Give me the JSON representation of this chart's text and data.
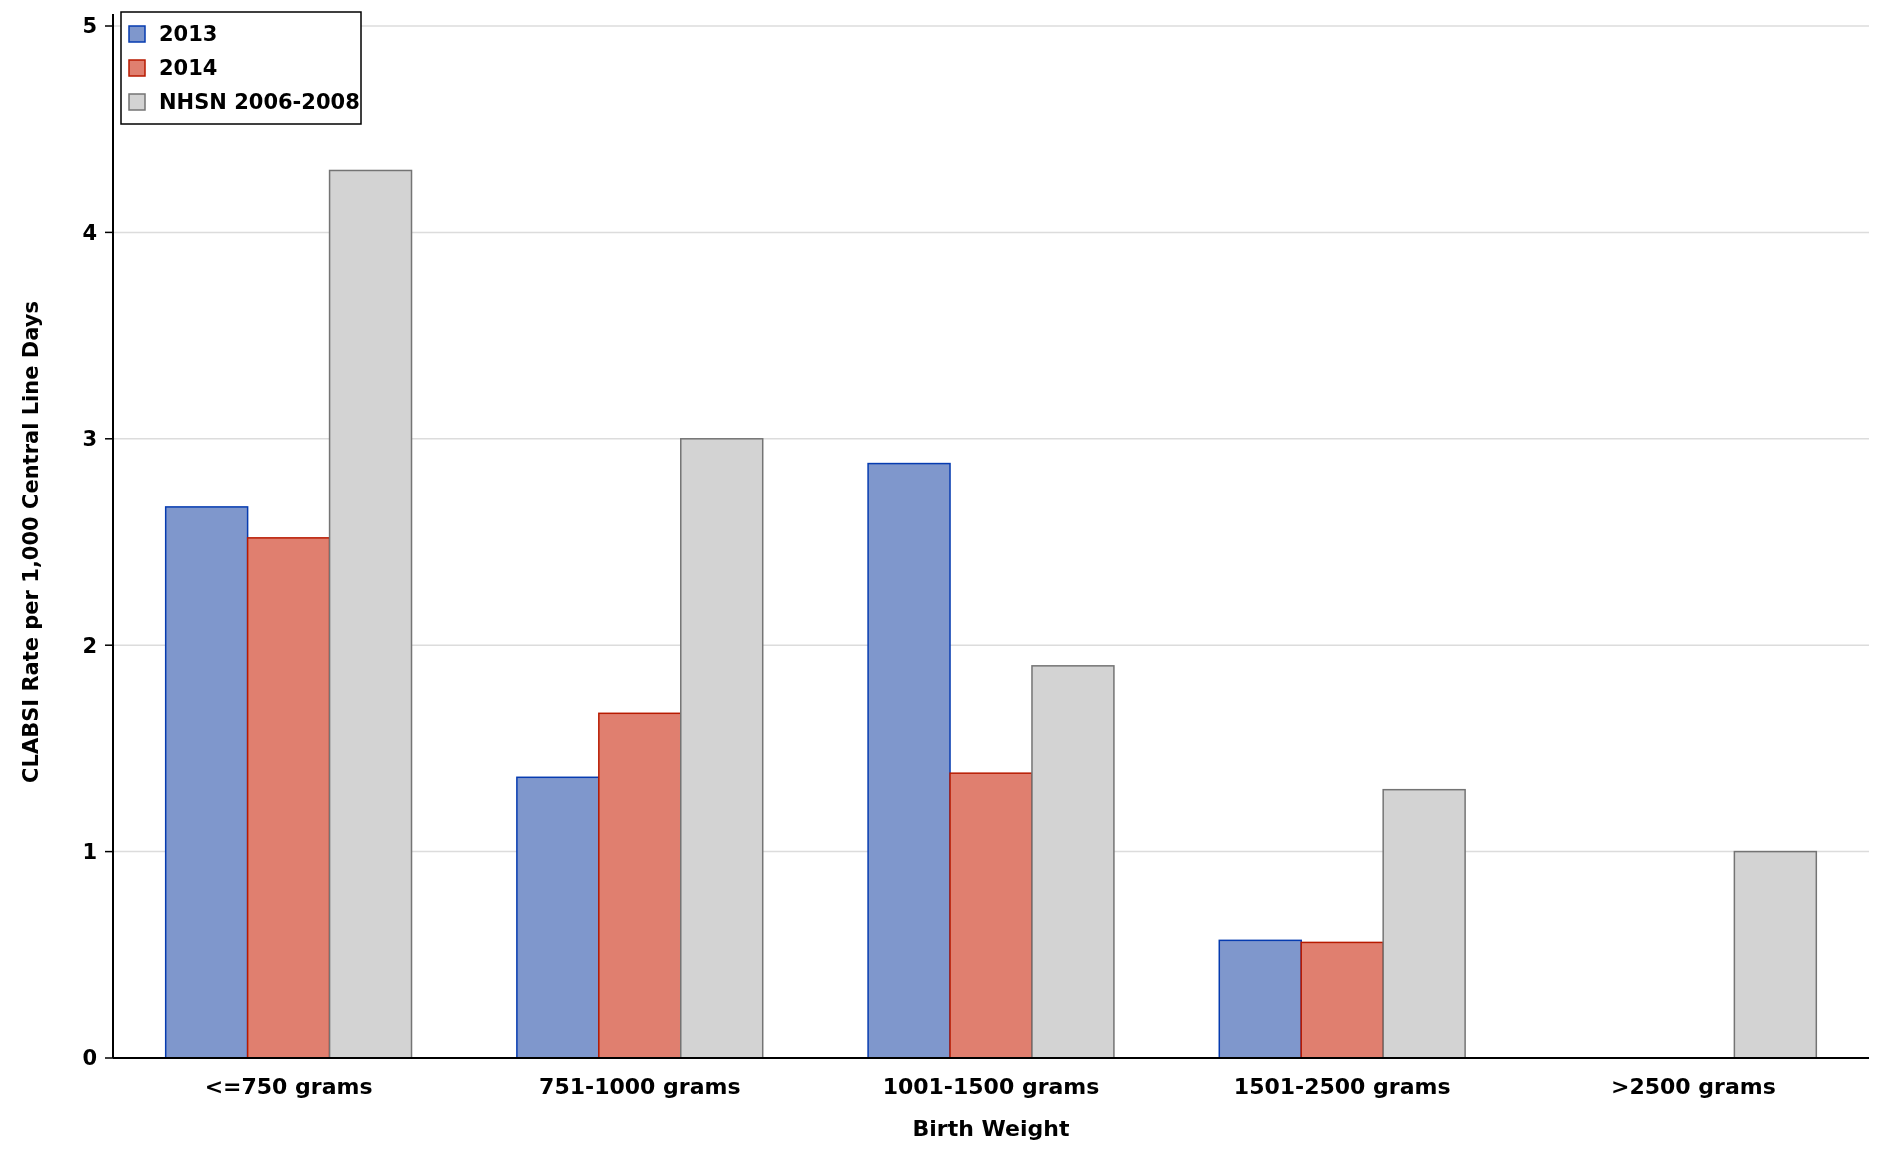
{
  "chart_data": {
    "type": "bar",
    "xlabel": "Birth Weight",
    "ylabel": "CLABSI Rate per 1,000 Central Line Days",
    "categories": [
      "<=750 grams",
      "751-1000 grams",
      "1001-1500 grams",
      "1501-2500 grams",
      ">2500 grams"
    ],
    "series": [
      {
        "name": "2013",
        "color": "#7f97cc",
        "values": [
          2.67,
          1.36,
          2.88,
          0.57,
          0
        ]
      },
      {
        "name": "2014",
        "color": "#e07f6f",
        "values": [
          2.52,
          1.67,
          1.38,
          0.56,
          0
        ]
      },
      {
        "name": "NHSN 2006-2008",
        "color": "#d3d3d3",
        "values": [
          4.3,
          3.0,
          1.9,
          1.3,
          1.0
        ]
      }
    ],
    "ylim": [
      0,
      5
    ],
    "yticks": [
      0,
      1,
      2,
      3,
      4,
      5
    ],
    "grid": "y",
    "legend": "top left"
  }
}
